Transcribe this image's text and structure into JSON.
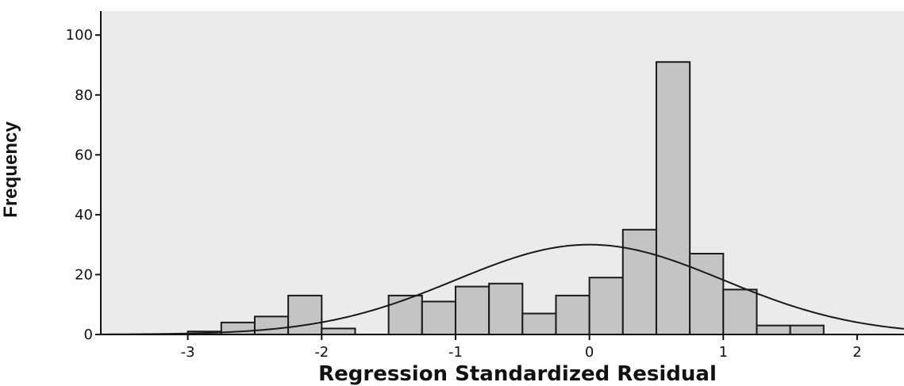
{
  "chart_data": {
    "type": "bar",
    "xlabel": "Regression Standardized Residual",
    "ylabel": "Frequency",
    "xlim": [
      -3.65,
      2.35
    ],
    "ylim": [
      0,
      108
    ],
    "x_ticks": [
      "-3",
      "-2",
      "-1",
      "0",
      "1",
      "2"
    ],
    "x_tick_values": [
      -3,
      -2,
      -1,
      0,
      1,
      2
    ],
    "y_ticks": [
      "0",
      "20",
      "40",
      "60",
      "80",
      "100"
    ],
    "y_tick_values": [
      0,
      20,
      40,
      60,
      80,
      100
    ],
    "bin_width": 0.25,
    "bins": [
      {
        "start": -3.0,
        "value": 1
      },
      {
        "start": -2.75,
        "value": 4
      },
      {
        "start": -2.5,
        "value": 6
      },
      {
        "start": -2.25,
        "value": 13
      },
      {
        "start": -2.0,
        "value": 2
      },
      {
        "start": -1.5,
        "value": 13
      },
      {
        "start": -1.25,
        "value": 11
      },
      {
        "start": -1.0,
        "value": 16
      },
      {
        "start": -0.75,
        "value": 17
      },
      {
        "start": -0.5,
        "value": 7
      },
      {
        "start": -0.25,
        "value": 13
      },
      {
        "start": 0.0,
        "value": 19
      },
      {
        "start": 0.25,
        "value": 35
      },
      {
        "start": 0.5,
        "value": 91
      },
      {
        "start": 0.75,
        "value": 27
      },
      {
        "start": 1.0,
        "value": 15
      },
      {
        "start": 1.25,
        "value": 3
      },
      {
        "start": 1.5,
        "value": 3
      }
    ],
    "normal_curve": {
      "mean": 0.0,
      "sd": 1.0,
      "peak": 30
    },
    "grid": false,
    "colors": {
      "bar_fill": "#c4c4c4",
      "bar_stroke": "#1a1a1a",
      "plot_bg": "#ebebeb",
      "curve": "#1a1a1a"
    }
  }
}
